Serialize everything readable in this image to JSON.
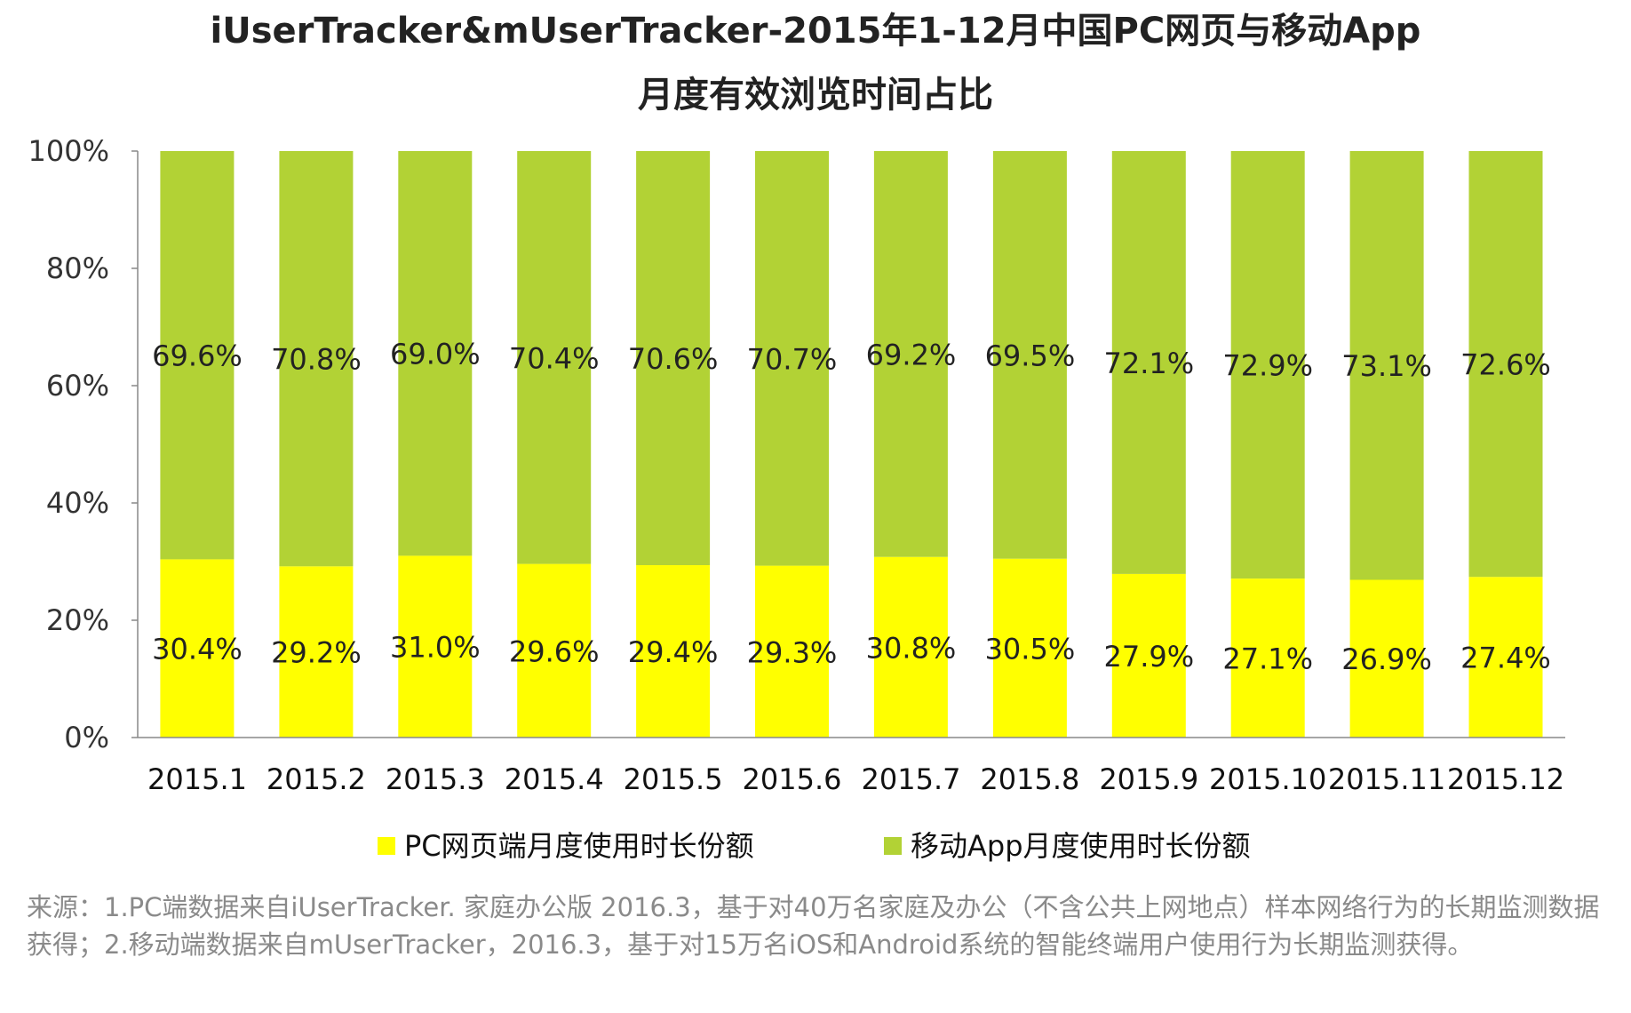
{
  "chart_data": {
    "type": "bar",
    "stacked": true,
    "title": "iUserTracker&mUserTracker-2015年1-12月中国PC网页与移动App",
    "subtitle": "月度有效浏览时间占比",
    "categories": [
      "2015.1",
      "2015.2",
      "2015.3",
      "2015.4",
      "2015.5",
      "2015.6",
      "2015.7",
      "2015.8",
      "2015.9",
      "2015.10",
      "2015.11",
      "2015.12"
    ],
    "series": [
      {
        "name": "PC网页端月度使用时长份额",
        "color": "#ffff00",
        "values": [
          30.4,
          29.2,
          31.0,
          29.6,
          29.4,
          29.3,
          30.8,
          30.5,
          27.9,
          27.1,
          26.9,
          27.4
        ],
        "labels": [
          "30.4%",
          "29.2%",
          "31.0%",
          "29.6%",
          "29.4%",
          "29.3%",
          "30.8%",
          "30.5%",
          "27.9%",
          "27.1%",
          "26.9%",
          "27.4%"
        ]
      },
      {
        "name": "移动App月度使用时长份额",
        "color": "#b2d235",
        "values": [
          69.6,
          70.8,
          69.0,
          70.4,
          70.6,
          70.7,
          69.2,
          69.5,
          72.1,
          72.9,
          73.1,
          72.6
        ],
        "labels": [
          "69.6%",
          "70.8%",
          "69.0%",
          "70.4%",
          "70.6%",
          "70.7%",
          "69.2%",
          "69.5%",
          "72.1%",
          "72.9%",
          "73.1%",
          "72.6%"
        ]
      }
    ],
    "ylim": [
      0,
      100
    ],
    "yticks": [
      0,
      20,
      40,
      60,
      80,
      100
    ],
    "ytick_labels": [
      "0%",
      "20%",
      "40%",
      "60%",
      "80%",
      "100%"
    ],
    "grid": false,
    "legend_position": "bottom"
  },
  "source_note": "来源：1.PC端数据来自iUserTracker. 家庭办公版 2016.3，基于对40万名家庭及办公（不含公共上网地点）样本网络行为的长期监测数据获得；2.移动端数据来自mUserTracker，2016.3，基于对15万名iOS和Android系统的智能终端用户使用行为长期监测获得。"
}
